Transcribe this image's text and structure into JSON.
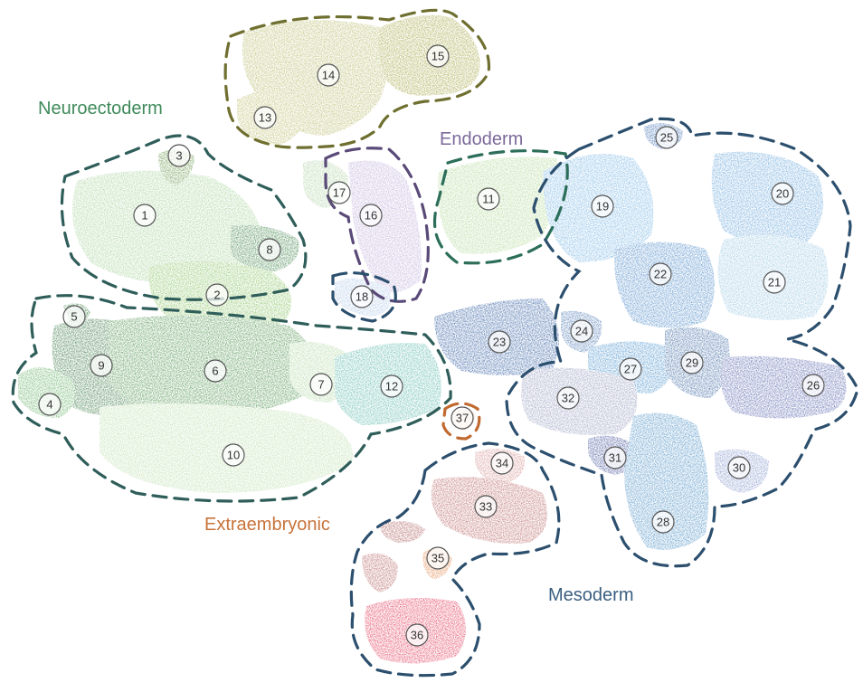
{
  "groups": [
    {
      "key": "neuro",
      "label": "Neuroectoderm",
      "color": "#3f8a5a",
      "outline": "#2f5e5a"
    },
    {
      "key": "endo",
      "label": "Endoderm",
      "color": "#7c6a9a",
      "outline": "#5a4a78"
    },
    {
      "key": "meso",
      "label": "Mesoderm",
      "color": "#3a5f80",
      "outline": "#2c4f6e"
    },
    {
      "key": "extra",
      "label": "Extraembryonic",
      "color": "#c8733a",
      "outline": "#c06a30"
    },
    {
      "key": "olive",
      "label": "",
      "color": "#8a8a3a",
      "outline": "#6f6f30"
    }
  ],
  "clusters": [
    {
      "id": "1",
      "group": "neuro",
      "color": "#9ccf8f"
    },
    {
      "id": "2",
      "group": "neuro",
      "color": "#7bbd52"
    },
    {
      "id": "3",
      "group": "neuro",
      "color": "#5a8f3a"
    },
    {
      "id": "4",
      "group": "neuro",
      "color": "#5aaa5a"
    },
    {
      "id": "5",
      "group": "neuro",
      "color": "#2f7a3a"
    },
    {
      "id": "6",
      "group": "neuro",
      "color": "#3f8a3f"
    },
    {
      "id": "7",
      "group": "neuro",
      "color": "#a9d49a"
    },
    {
      "id": "8",
      "group": "neuro",
      "color": "#2f7a3a"
    },
    {
      "id": "9",
      "group": "neuro",
      "color": "#2a6e34"
    },
    {
      "id": "10",
      "group": "neuro",
      "color": "#b6dba3"
    },
    {
      "id": "11",
      "group": "endo",
      "color": "#a8d48a"
    },
    {
      "id": "12",
      "group": "neuro",
      "color": "#4fb3a6"
    },
    {
      "id": "13",
      "group": "olive",
      "color": "#b6b860"
    },
    {
      "id": "14",
      "group": "olive",
      "color": "#b0b45a"
    },
    {
      "id": "15",
      "group": "olive",
      "color": "#9c9c32"
    },
    {
      "id": "16",
      "group": "endo",
      "color": "#b7a5d6"
    },
    {
      "id": "17",
      "group": "endo",
      "color": "#a9cf9a"
    },
    {
      "id": "18",
      "group": "endo",
      "color": "#a9c3e6"
    },
    {
      "id": "19",
      "group": "meso",
      "color": "#6aaee0"
    },
    {
      "id": "20",
      "group": "meso",
      "color": "#5b9fd8"
    },
    {
      "id": "21",
      "group": "meso",
      "color": "#8ec1de"
    },
    {
      "id": "22",
      "group": "meso",
      "color": "#3b7fc4"
    },
    {
      "id": "23",
      "group": "meso",
      "color": "#1f4f9a"
    },
    {
      "id": "24",
      "group": "meso",
      "color": "#3f6fae"
    },
    {
      "id": "25",
      "group": "meso",
      "color": "#2a5fa8"
    },
    {
      "id": "26",
      "group": "meso",
      "color": "#4a57a6"
    },
    {
      "id": "27",
      "group": "meso",
      "color": "#3c8ac9"
    },
    {
      "id": "28",
      "group": "meso",
      "color": "#3a86c0"
    },
    {
      "id": "29",
      "group": "meso",
      "color": "#2e5e9c"
    },
    {
      "id": "30",
      "group": "meso",
      "color": "#7a8cc8"
    },
    {
      "id": "31",
      "group": "meso",
      "color": "#2e3f8f"
    },
    {
      "id": "32",
      "group": "meso",
      "color": "#8a93b8"
    },
    {
      "id": "33",
      "group": "meso",
      "color": "#b55a5a"
    },
    {
      "id": "34",
      "group": "meso",
      "color": "#d28a8a"
    },
    {
      "id": "35",
      "group": "meso",
      "color": "#e07b3a"
    },
    {
      "id": "36",
      "group": "meso",
      "color": "#e0284a"
    },
    {
      "id": "37",
      "group": "extra",
      "color": "#d9a070"
    }
  ]
}
